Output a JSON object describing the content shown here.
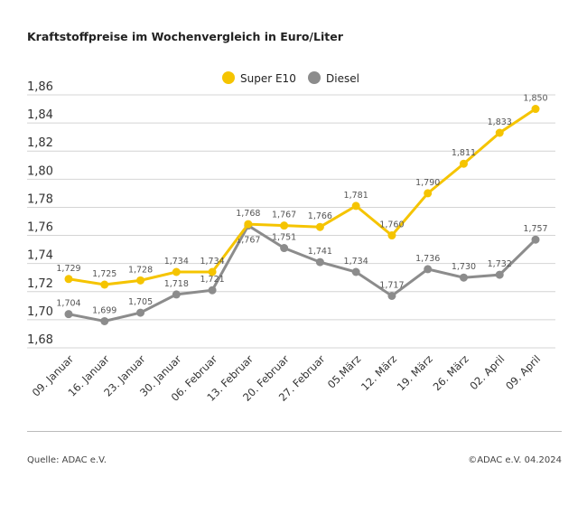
{
  "chart_data": {
    "type": "line",
    "title": "Kraftstoffpreise im Wochenvergleich in Euro/Liter",
    "categories": [
      "09. Januar",
      "16. Januar",
      "23. Januar",
      "30. Januar",
      "06. Februar",
      "13. Februar",
      "20. Februar",
      "27. Februar",
      "05.März",
      "12. März",
      "19. März",
      "26. März",
      "02. April",
      "09. April"
    ],
    "series": [
      {
        "name": "Super E10",
        "color": "#f5c400",
        "values": [
          1.729,
          1.725,
          1.728,
          1.734,
          1.734,
          1.768,
          1.767,
          1.766,
          1.781,
          1.76,
          1.79,
          1.811,
          1.833,
          1.85
        ],
        "labels": [
          "1,729",
          "1,725",
          "1,728",
          "1,734",
          "1,734",
          "1,768",
          "1,767",
          "1,766",
          "1,781",
          "1,760",
          "1,790",
          "1,811",
          "1,833",
          "1,850"
        ]
      },
      {
        "name": "Diesel",
        "color": "#8c8c8c",
        "values": [
          1.704,
          1.699,
          1.705,
          1.718,
          1.721,
          1.767,
          1.751,
          1.741,
          1.734,
          1.717,
          1.736,
          1.73,
          1.732,
          1.757
        ],
        "labels": [
          "1,704",
          "1,699",
          "1,705",
          "1,718",
          "1,721",
          "1,767",
          "1,751",
          "1,741",
          "1,734",
          "1,717",
          "1,736",
          "1,730",
          "1,732",
          "1,757"
        ]
      }
    ],
    "yticks": [
      "1,68",
      "1,70",
      "1,72",
      "1,74",
      "1,76",
      "1,78",
      "1,80",
      "1,82",
      "1,84",
      "1,86"
    ],
    "ylim": [
      1.68,
      1.86
    ],
    "grid": true,
    "legend": "top-center"
  },
  "footer": {
    "source": "Quelle: ADAC e.V.",
    "copyright": "©ADAC e.V. 04.2024"
  }
}
